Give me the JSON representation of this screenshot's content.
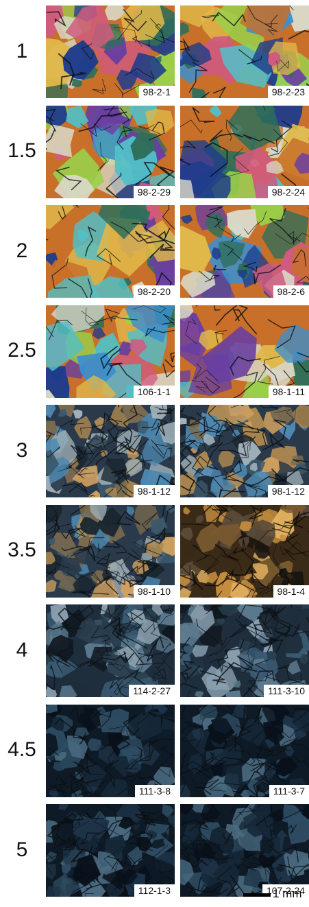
{
  "rows": [
    {
      "label": "1",
      "left": {
        "id": "98-2-1",
        "palette": "vivid"
      },
      "right": {
        "id": "98-2-23",
        "palette": "vivid"
      }
    },
    {
      "label": "1.5",
      "left": {
        "id": "98-2-29",
        "palette": "vivid"
      },
      "right": {
        "id": "98-2-24",
        "palette": "vivid"
      }
    },
    {
      "label": "2",
      "left": {
        "id": "98-2-20",
        "palette": "vivid"
      },
      "right": {
        "id": "98-2-6",
        "palette": "vivid"
      }
    },
    {
      "label": "2.5",
      "left": {
        "id": "106-1-1",
        "palette": "vivid"
      },
      "right": {
        "id": "98-1-11",
        "palette": "vivid"
      }
    },
    {
      "label": "3",
      "left": {
        "id": "98-1-12",
        "palette": "mixed"
      },
      "right": {
        "id": "98-1-12",
        "palette": "mixed"
      }
    },
    {
      "label": "3.5",
      "left": {
        "id": "98-1-10",
        "palette": "mixed"
      },
      "right": {
        "id": "98-1-4",
        "palette": "amber"
      }
    },
    {
      "label": "4",
      "left": {
        "id": "114-2-27",
        "palette": "dark"
      },
      "right": {
        "id": "111-3-10",
        "palette": "dark"
      }
    },
    {
      "label": "4.5",
      "left": {
        "id": "111-3-8",
        "palette": "darker"
      },
      "right": {
        "id": "111-3-7",
        "palette": "darker"
      }
    },
    {
      "label": "5",
      "left": {
        "id": "112-1-3",
        "palette": "darker"
      },
      "right": {
        "id": "107-2-24",
        "palette": "darker"
      }
    }
  ],
  "scale_bar": {
    "label": "1 mm"
  },
  "colors": {
    "vivid": [
      "#c8702a",
      "#3a8fd0",
      "#e0b84a",
      "#6a3fa0",
      "#2f6f5a",
      "#d9d9c8",
      "#9ad04a",
      "#1e3c8c",
      "#d05a80",
      "#51c0c8"
    ],
    "mixed": [
      "#2a3a4a",
      "#4e88b0",
      "#7a6a50",
      "#b08a50",
      "#3c5a6c",
      "#a0b0b8",
      "#1a2630",
      "#d0a060"
    ],
    "amber": [
      "#3a2a18",
      "#c89040",
      "#7a5a30",
      "#1a1510",
      "#e0b060",
      "#5a4a38"
    ],
    "dark": [
      "#1e2e3c",
      "#3a5a72",
      "#5c7a8e",
      "#101820",
      "#8aa0b0",
      "#2a4050"
    ],
    "darker": [
      "#0e1a26",
      "#1e3448",
      "#2e4c62",
      "#08101a",
      "#4a6a80",
      "#162838"
    ]
  }
}
